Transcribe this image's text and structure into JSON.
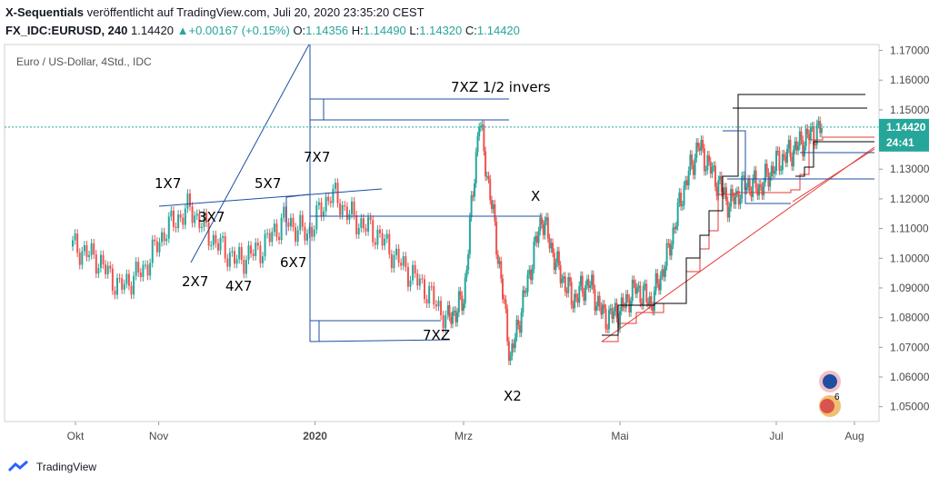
{
  "header": {
    "line1_bold": "X-Sequentials",
    "line1_rest": " veröffentlicht auf TradingView.com, Juli 20, 2020 23:35:20 CEST",
    "symbol": "FX_IDC:EURUSD, 240",
    "last": "1.14420",
    "change_arrow": "▲",
    "change": "+0.00167 (+0.15%)",
    "o_label": "O:",
    "o_val": "1.14356",
    "h_label": "H:",
    "h_val": "1.14490",
    "l_label": "L:",
    "l_val": "1.14320",
    "c_label": "C:",
    "c_val": "1.14420"
  },
  "chart_title": "Euro / US-Dollar, 4Std., IDC",
  "footer": {
    "brand": "TradingView"
  },
  "colors": {
    "up": "#26a69a",
    "down": "#ef5350",
    "blue": "#1e4fa3",
    "red": "#e53935",
    "price_tag": "#26a69a"
  },
  "chart_data": {
    "type": "line",
    "ylim": [
      1.045,
      1.172
    ],
    "y_ticks": [
      "1.05000",
      "1.06000",
      "1.07000",
      "1.08000",
      "1.09000",
      "1.10000",
      "1.11000",
      "1.12000",
      "1.13000",
      "1.14000",
      "1.15000",
      "1.16000",
      "1.17000"
    ],
    "x_ticks": [
      "Okt",
      "Nov",
      "2020",
      "Mrz",
      "Mai",
      "Jul",
      "Aug"
    ],
    "x_tick_pos": [
      0.0,
      1.1,
      3.1,
      5.0,
      7.0,
      9.0,
      10.0
    ],
    "last_price_label": "1.14420",
    "countdown_label": "24:41",
    "series": [
      {
        "x": [
          0,
          0.3,
          0.6,
          0.9,
          1.2,
          1.5,
          1.8,
          2.1,
          2.4,
          2.7,
          3.0,
          3.3,
          3.6,
          3.9,
          4.2,
          4.5,
          4.8,
          5.0,
          5.2,
          5.4,
          5.6,
          5.8,
          6.0,
          6.2,
          6.4,
          6.6,
          6.8,
          7.0,
          7.2,
          7.4,
          7.6,
          7.8,
          8.0,
          8.2,
          8.4,
          8.6,
          8.8,
          9.0,
          9.2,
          9.4,
          9.6
        ],
        "values": [
          1.104,
          1.1,
          1.09,
          1.096,
          1.11,
          1.117,
          1.106,
          1.099,
          1.103,
          1.113,
          1.108,
          1.122,
          1.113,
          1.108,
          1.098,
          1.09,
          1.079,
          1.086,
          1.147,
          1.11,
          1.066,
          1.09,
          1.114,
          1.097,
          1.086,
          1.092,
          1.08,
          1.082,
          1.09,
          1.085,
          1.1,
          1.122,
          1.138,
          1.128,
          1.118,
          1.125,
          1.124,
          1.132,
          1.136,
          1.141,
          1.144
        ]
      }
    ],
    "annotations": [
      "1X7",
      "2X7",
      "3X7",
      "4X7",
      "5X7",
      "6X7",
      "7X7",
      "7XZ",
      "7XZ 1/2 invers",
      "X",
      "X2"
    ]
  }
}
